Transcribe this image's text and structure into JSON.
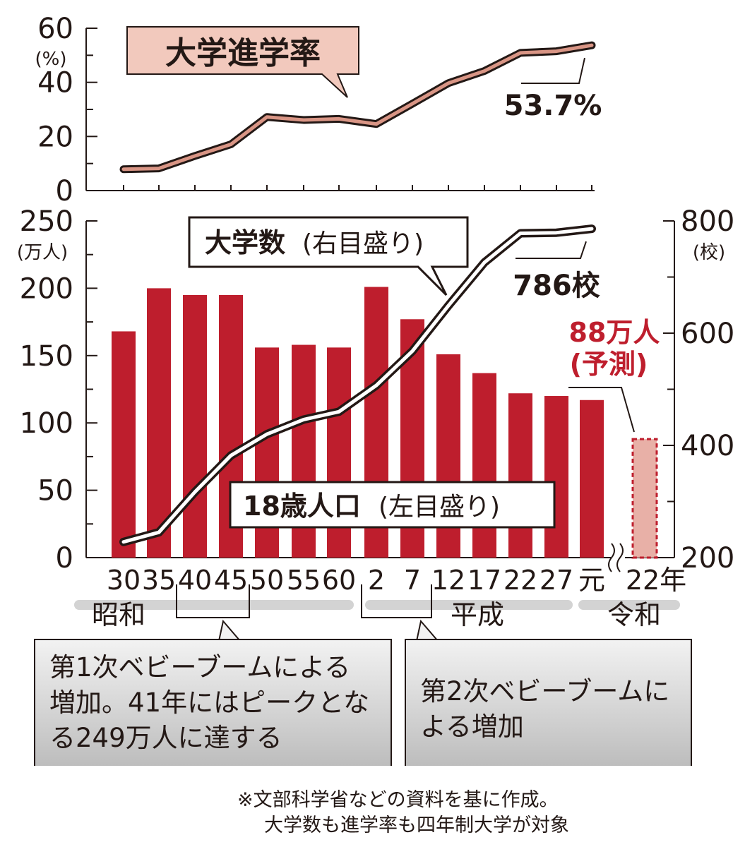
{
  "colors": {
    "bar": "#be1e2d",
    "forecast_bar": "#e8b0a7",
    "rate_line": "#d99585",
    "axis": "#231815",
    "era_band": "#d3d3d3",
    "label_red": "#be1e2d",
    "title_box": "#f2c9bd"
  },
  "chart_data": [
    {
      "type": "line",
      "title": "大学進学率",
      "y_unit": "(%)",
      "ylim": [
        0,
        60
      ],
      "y_ticks": [
        "0",
        "20",
        "40",
        "60"
      ],
      "x": [
        "30",
        "35",
        "40",
        "45",
        "50",
        "55",
        "60",
        "2",
        "7",
        "12",
        "17",
        "22",
        "27",
        "元"
      ],
      "values": [
        7.9,
        8.2,
        12.8,
        17.1,
        27.2,
        26.1,
        26.5,
        24.6,
        32.1,
        39.7,
        44.2,
        50.9,
        51.5,
        53.7
      ],
      "end_label": "53.7%"
    },
    {
      "type": "bar",
      "title": "18歳人口",
      "title_paren": "(左目盛り)",
      "left_unit": "(万人)",
      "right_unit": "(校)",
      "ylim": [
        0,
        250
      ],
      "y_ticks": [
        "0",
        "50",
        "100",
        "150",
        "200",
        "250"
      ],
      "y2lim": [
        200,
        800
      ],
      "y2_ticks": [
        "200",
        "400",
        "600",
        "800"
      ],
      "categories": [
        "30",
        "35",
        "40",
        "45",
        "50",
        "55",
        "60",
        "2",
        "7",
        "12",
        "17",
        "22",
        "27",
        "元",
        "22年"
      ],
      "values": [
        168,
        200,
        195,
        195,
        156,
        158,
        156,
        201,
        177,
        151,
        137,
        122,
        120,
        117,
        88
      ],
      "forecast_index": 14,
      "forecast_label": [
        "88万人",
        "(予測)"
      ],
      "line_series": {
        "name": "大学数",
        "name_paren": "(右目盛り)",
        "values": [
          228,
          245,
          317,
          382,
          420,
          446,
          460,
          507,
          568,
          649,
          726,
          778,
          779,
          786
        ],
        "end_label": "786校"
      },
      "eras": [
        "昭和",
        "平成",
        "令和"
      ]
    }
  ],
  "callouts": {
    "first": "第1次ベビーブームによる増加。41年にはピークとなる249万人に達する",
    "second": "第2次ベビーブームによる増加"
  },
  "footnote": {
    "line1": "※文部科学省などの資料を基に作成。",
    "line2": "大学数も進学率も四年制大学が対象"
  }
}
